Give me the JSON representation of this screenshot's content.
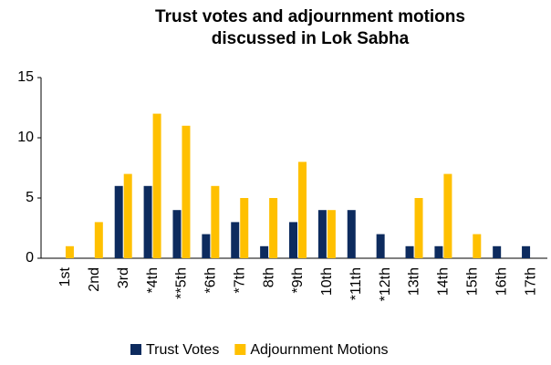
{
  "chart_data": {
    "type": "bar",
    "title": [
      "Trust votes and adjournment motions",
      "discussed in Lok Sabha"
    ],
    "categories": [
      "1st",
      "2nd",
      "3rd",
      "*4th",
      "**5th",
      "*6th",
      "*7th",
      "8th",
      "*9th",
      "10th",
      "*11th",
      "*12th",
      "13th",
      "14th",
      "15th",
      "16th",
      "17th"
    ],
    "series": [
      {
        "name": "Trust Votes",
        "color": "#0d2b5e",
        "values": [
          0,
          0,
          6,
          6,
          4,
          2,
          3,
          1,
          3,
          4,
          4,
          2,
          1,
          1,
          0,
          1,
          1
        ]
      },
      {
        "name": "Adjournment Motions",
        "color": "#ffc000",
        "values": [
          1,
          3,
          7,
          12,
          11,
          6,
          5,
          5,
          8,
          4,
          0,
          0,
          5,
          7,
          2,
          0,
          0
        ]
      }
    ],
    "ylim": [
      0,
      15
    ],
    "yticks": [
      0,
      5,
      10,
      15
    ],
    "grid": false,
    "legend": "bottom"
  }
}
